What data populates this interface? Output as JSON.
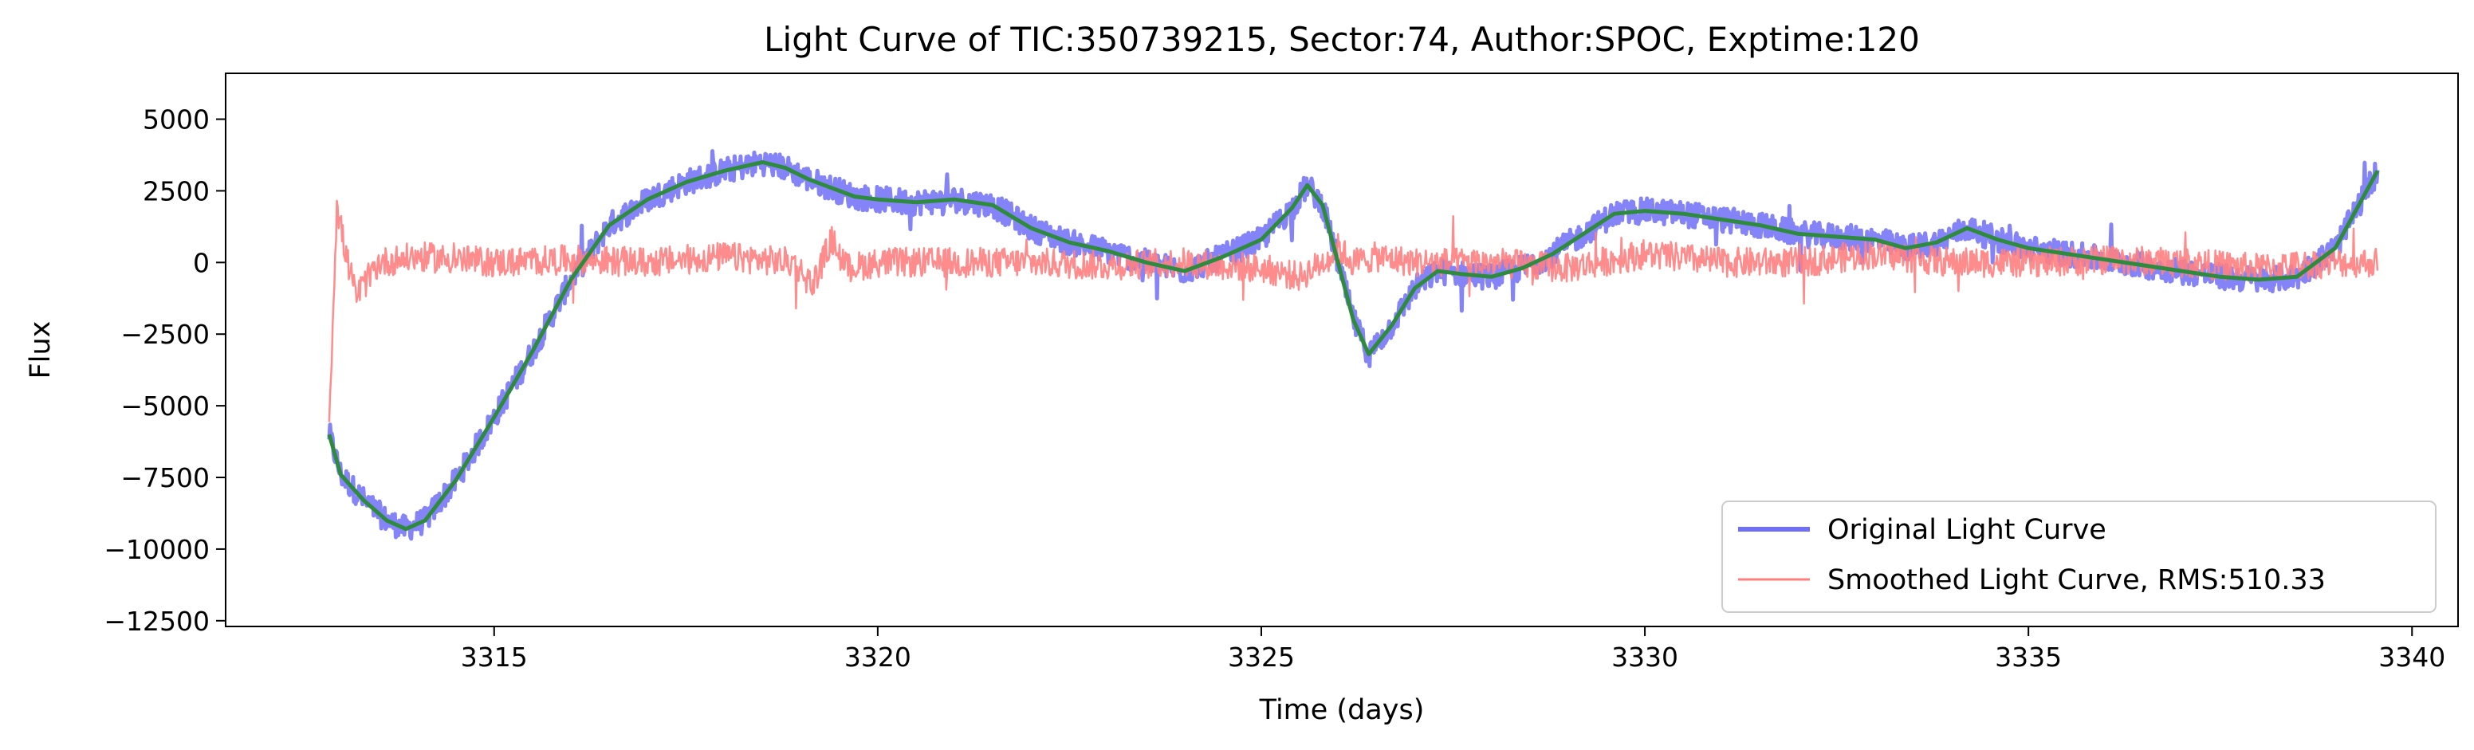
{
  "chart_data": {
    "type": "line",
    "title": "Light Curve of TIC:350739215, Sector:74, Author:SPOC, Exptime:120",
    "xlabel": "Time (days)",
    "ylabel": "Flux",
    "xlim": [
      3311.5,
      3340.6
    ],
    "ylim": [
      -12700,
      6600
    ],
    "xticks": [
      3315,
      3320,
      3325,
      3330,
      3335,
      3340
    ],
    "yticks": [
      5000,
      2500,
      0,
      -2500,
      -5000,
      -7500,
      -10000,
      -12500
    ],
    "ytick_labels": [
      "5000",
      "2500",
      "0",
      "−2500",
      "−5000",
      "−7500",
      "−10000",
      "−12500"
    ],
    "grid": false,
    "legend_position": "bottom-right",
    "series": [
      {
        "name": "Original Light Curve",
        "color": "#6f6ff7",
        "noise_amplitude": 450,
        "x": [
          3312.85,
          3313.0,
          3313.3,
          3313.6,
          3313.85,
          3314.1,
          3314.5,
          3315.0,
          3315.5,
          3316.0,
          3316.5,
          3317.0,
          3317.5,
          3318.0,
          3318.5,
          3318.8,
          3319.1,
          3319.4,
          3319.7,
          3320.0,
          3320.5,
          3321.0,
          3321.5,
          3322.0,
          3322.5,
          3323.0,
          3323.5,
          3324.0,
          3324.5,
          3325.0,
          3325.4,
          3325.6,
          3325.8,
          3326.0,
          3326.2,
          3326.4,
          3326.7,
          3327.0,
          3327.3,
          3327.6,
          3328.0,
          3328.4,
          3328.8,
          3329.2,
          3329.6,
          3330.0,
          3330.5,
          3331.0,
          3331.5,
          3332.0,
          3332.5,
          3333.0,
          3333.4,
          3333.8,
          3334.2,
          3334.6,
          3335.0,
          3335.5,
          3336.0,
          3336.5,
          3337.0,
          3337.5,
          3338.0,
          3338.5,
          3339.0,
          3339.55
        ],
        "y": [
          -6000,
          -7400,
          -8300,
          -9000,
          -9300,
          -9000,
          -7600,
          -5400,
          -3100,
          -600,
          1300,
          2200,
          2800,
          3200,
          3500,
          3300,
          2900,
          2600,
          2300,
          2200,
          2100,
          2200,
          2000,
          1200,
          700,
          400,
          0,
          -300,
          200,
          800,
          1900,
          2700,
          2000,
          0,
          -2000,
          -3200,
          -2200,
          -900,
          -300,
          -400,
          -500,
          -200,
          300,
          1000,
          1700,
          1800,
          1700,
          1500,
          1300,
          1000,
          900,
          800,
          500,
          700,
          1200,
          800,
          500,
          300,
          100,
          -100,
          -300,
          -500,
          -600,
          -500,
          500,
          3200
        ]
      },
      {
        "name": "Smoothed Light Curve, RMS:510.33",
        "color": "#ff7f7f",
        "noise_amplitude": 520,
        "x": [
          3312.85,
          3312.95,
          3313.05,
          3313.2,
          3313.5,
          3314.0,
          3315.0,
          3316.0,
          3317.0,
          3318.0,
          3318.9,
          3319.15,
          3319.4,
          3319.6,
          3320.0,
          3321.0,
          3322.0,
          3323.0,
          3324.0,
          3325.0,
          3325.5,
          3325.8,
          3326.0,
          3326.2,
          3326.5,
          3327.0,
          3328.0,
          3329.0,
          3330.0,
          3331.0,
          3332.0,
          3333.0,
          3334.0,
          3335.0,
          3336.0,
          3337.0,
          3338.0,
          3339.0,
          3339.55
        ],
        "y": [
          -5500,
          2000,
          500,
          -1200,
          0,
          200,
          0,
          100,
          0,
          200,
          0,
          -800,
          800,
          -200,
          0,
          0,
          0,
          -100,
          0,
          -200,
          -500,
          0,
          500,
          0,
          200,
          0,
          0,
          -200,
          300,
          0,
          0,
          300,
          0,
          0,
          100,
          0,
          -200,
          0,
          0
        ]
      },
      {
        "name": "",
        "color": "#2e8b3e",
        "noise_amplitude": 0,
        "x": [
          3312.85,
          3313.0,
          3313.3,
          3313.6,
          3313.85,
          3314.1,
          3314.5,
          3315.0,
          3315.5,
          3316.0,
          3316.5,
          3317.0,
          3317.5,
          3318.0,
          3318.5,
          3318.8,
          3319.1,
          3319.4,
          3319.7,
          3320.0,
          3320.5,
          3321.0,
          3321.5,
          3322.0,
          3322.5,
          3323.0,
          3323.5,
          3324.0,
          3324.5,
          3325.0,
          3325.4,
          3325.6,
          3325.8,
          3326.0,
          3326.2,
          3326.4,
          3326.7,
          3327.0,
          3327.3,
          3327.6,
          3328.0,
          3328.4,
          3328.8,
          3329.2,
          3329.6,
          3330.0,
          3330.5,
          3331.0,
          3331.5,
          3332.0,
          3332.5,
          3333.0,
          3333.4,
          3333.8,
          3334.2,
          3334.6,
          3335.0,
          3335.5,
          3336.0,
          3336.5,
          3337.0,
          3337.5,
          3338.0,
          3338.5,
          3339.0,
          3339.55
        ],
        "y": [
          -6000,
          -7400,
          -8300,
          -9000,
          -9300,
          -9000,
          -7600,
          -5400,
          -3100,
          -600,
          1300,
          2200,
          2800,
          3200,
          3500,
          3300,
          2900,
          2600,
          2300,
          2200,
          2100,
          2200,
          2000,
          1200,
          700,
          400,
          0,
          -300,
          200,
          800,
          1900,
          2700,
          2000,
          0,
          -2000,
          -3200,
          -2200,
          -900,
          -300,
          -400,
          -500,
          -200,
          300,
          1000,
          1700,
          1800,
          1700,
          1500,
          1300,
          1000,
          900,
          800,
          500,
          700,
          1200,
          800,
          500,
          300,
          100,
          -100,
          -300,
          -500,
          -600,
          -500,
          500,
          3200
        ]
      }
    ]
  }
}
